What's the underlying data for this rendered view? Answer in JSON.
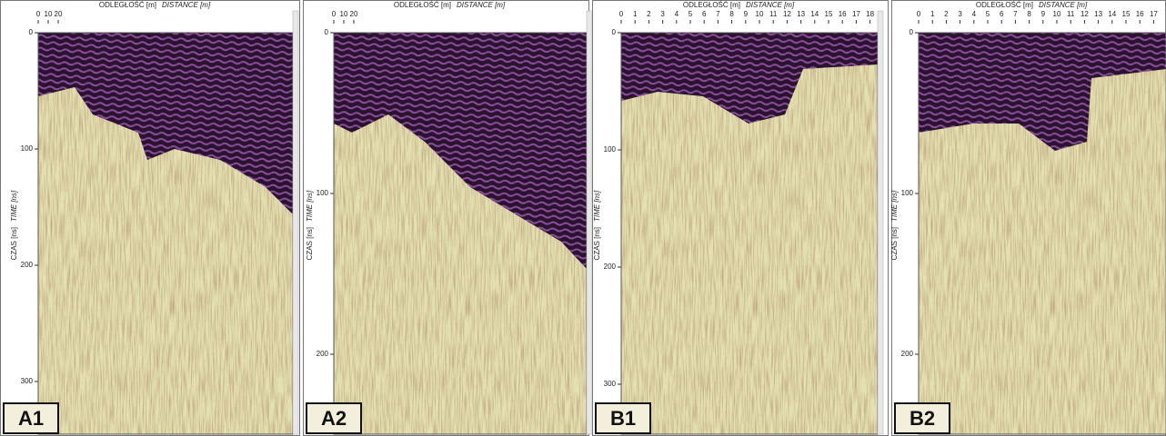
{
  "panels": [
    {
      "label": "A1",
      "x_axis_title": "ODLEGŁOŚĆ [m]",
      "x_axis_title_en": "DISTANCE [m]",
      "y_axis_title": "CZAS [ns]",
      "y_axis_title_en": "TIME [ns]",
      "xticks": [
        "0",
        "10",
        "20"
      ],
      "yticks": [
        "0",
        "100",
        "200",
        "300"
      ]
    },
    {
      "label": "A2",
      "x_axis_title": "ODLEGŁOŚĆ [m]",
      "x_axis_title_en": "DISTANCE [m]",
      "y_axis_title": "CZAS [ns]",
      "y_axis_title_en": "TIME [ns]",
      "xticks": [
        "0",
        "10",
        "20"
      ],
      "yticks": [
        "0",
        "100",
        "200"
      ]
    },
    {
      "label": "B1",
      "x_axis_title": "ODLEGŁOŚĆ [m]",
      "x_axis_title_en": "DISTANCE [m]",
      "y_axis_title": "CZAS [ns]",
      "y_axis_title_en": "TIME [ns]",
      "xticks": [
        "0",
        "1",
        "2",
        "3",
        "4",
        "5",
        "6",
        "7",
        "8",
        "9",
        "10",
        "11",
        "12",
        "13",
        "14",
        "15",
        "16",
        "17",
        "18"
      ],
      "yticks": [
        "0",
        "100",
        "200",
        "300"
      ]
    },
    {
      "label": "B2",
      "x_axis_title": "ODLEGŁOŚĆ [m]",
      "x_axis_title_en": "DISTANCE [m]",
      "y_axis_title": "CZAS [ns]",
      "y_axis_title_en": "TIME [ns]",
      "xticks": [
        "0",
        "1",
        "2",
        "3",
        "4",
        "5",
        "6",
        "7",
        "8",
        "9",
        "10",
        "11",
        "12",
        "13",
        "14",
        "15",
        "16",
        "17"
      ],
      "yticks": [
        "0",
        "100",
        "200"
      ]
    }
  ]
}
